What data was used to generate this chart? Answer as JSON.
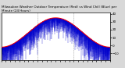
{
  "title": "Milwaukee Weather Outdoor Temperature (Red) vs Wind Chill (Blue) per Minute (24 Hours)",
  "background_color": "#d8d8d8",
  "plot_background": "#ffffff",
  "num_points": 1440,
  "wind_chill_noise_scale": 10,
  "red_color": "#ff0000",
  "blue_color": "#0000cc",
  "grid_color": "#888888",
  "tick_fontsize": 3.0,
  "title_fontsize": 3.0,
  "figsize": [
    1.6,
    0.87
  ],
  "dpi": 100,
  "ylim": [
    -18,
    42
  ],
  "yticks": [
    -10,
    0,
    10,
    20,
    30,
    40
  ],
  "num_gridlines": 2,
  "temp_low": -2,
  "temp_high": 35
}
